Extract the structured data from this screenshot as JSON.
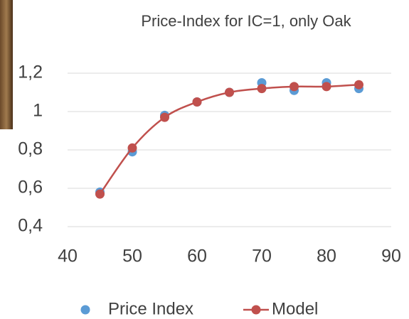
{
  "chart_data": {
    "type": "scatter",
    "title": "Price-Index for IC=1, only Oak",
    "x": [
      45,
      50,
      55,
      60,
      65,
      70,
      75,
      80,
      85
    ],
    "series": [
      {
        "name": "Price Index",
        "color": "#5b9bd5",
        "line": false,
        "values": [
          0.58,
          0.79,
          0.98,
          1.05,
          1.1,
          1.15,
          1.11,
          1.15,
          1.12
        ]
      },
      {
        "name": "Model",
        "color": "#c0504d",
        "line": true,
        "values": [
          0.57,
          0.81,
          0.97,
          1.05,
          1.1,
          1.12,
          1.13,
          1.13,
          1.14
        ]
      }
    ],
    "xlim": [
      40,
      90
    ],
    "xticks": [
      40,
      50,
      60,
      70,
      80,
      90
    ],
    "ylim": [
      0.4,
      1.2
    ],
    "yticks": [
      {
        "value": 0.4,
        "label": "0,4"
      },
      {
        "value": 0.6,
        "label": "0,6"
      },
      {
        "value": 0.8,
        "label": "0,8"
      },
      1,
      {
        "value": 1.2,
        "label": "1,2"
      }
    ],
    "grid": true,
    "legend": "bottom"
  }
}
